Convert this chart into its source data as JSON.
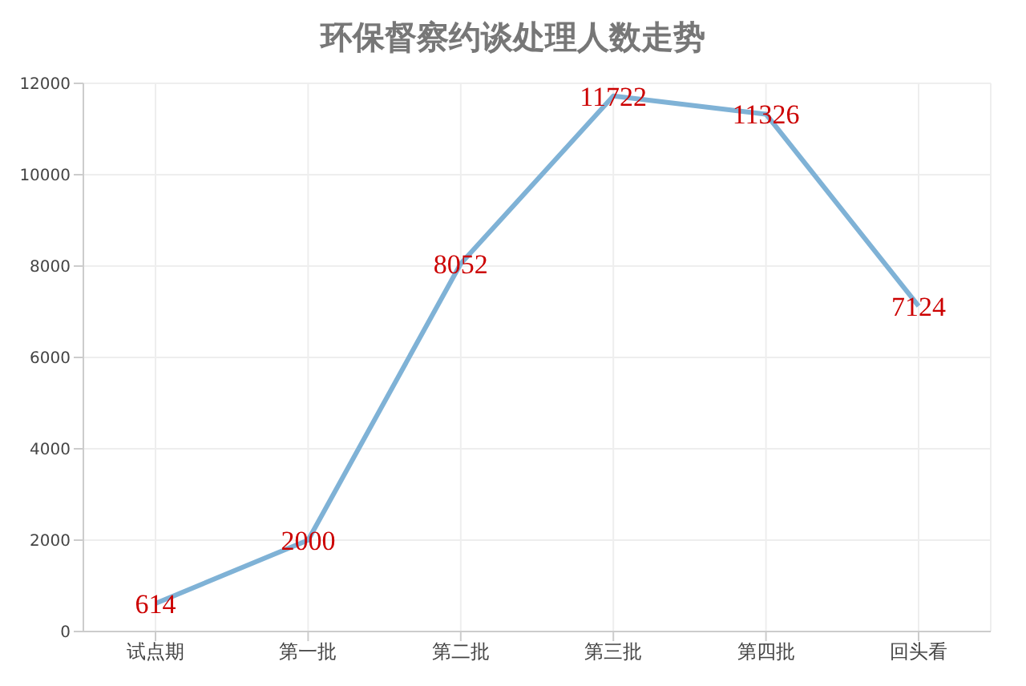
{
  "chart_data": {
    "type": "line",
    "title": "环保督察约谈处理人数走势",
    "categories": [
      "试点期",
      "第一批",
      "第二批",
      "第三批",
      "第四批",
      "回头看"
    ],
    "values": [
      614,
      2000,
      8052,
      11722,
      11326,
      7124
    ],
    "color": "#7fb2d6",
    "ylim": [
      0,
      12000
    ],
    "yticks": [
      0,
      2000,
      4000,
      6000,
      8000,
      10000,
      12000
    ],
    "grid": true,
    "data_labels": true,
    "marker": "none"
  }
}
